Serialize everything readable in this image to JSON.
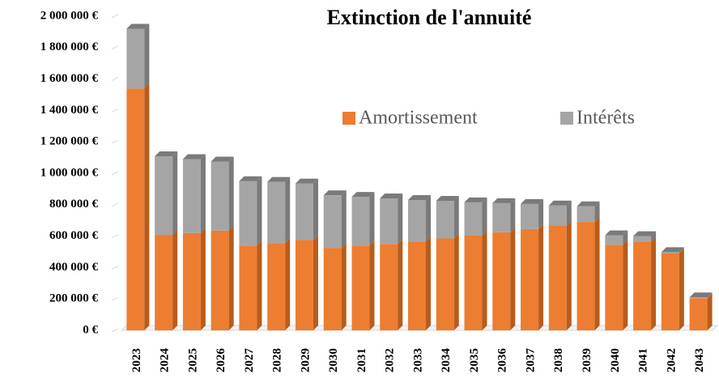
{
  "chart_data": {
    "type": "bar",
    "stacked": true,
    "title": "Extinction de l'annuité",
    "categories": [
      "2023",
      "2024",
      "2025",
      "2026",
      "2027",
      "2028",
      "2029",
      "2030",
      "2031",
      "2032",
      "2033",
      "2034",
      "2035",
      "2036",
      "2037",
      "2038",
      "2039",
      "2040",
      "2041",
      "2042",
      "2043"
    ],
    "series": [
      {
        "name": "Amortissement",
        "color": "#ED7D31",
        "side": "#B85C1C",
        "values": [
          1540000,
          608000,
          620000,
          635000,
          540000,
          555000,
          575000,
          525000,
          540000,
          550000,
          565000,
          585000,
          605000,
          625000,
          645000,
          665000,
          690000,
          545000,
          565000,
          490000,
          205000
        ]
      },
      {
        "name": "Intérêts",
        "color": "#A5A5A5",
        "side": "#7A7A7A",
        "values": [
          380000,
          500000,
          470000,
          440000,
          410000,
          390000,
          360000,
          335000,
          310000,
          290000,
          265000,
          240000,
          210000,
          185000,
          160000,
          130000,
          100000,
          60000,
          35000,
          8000,
          5000
        ]
      }
    ],
    "ylim": [
      0,
      2000000
    ],
    "yticks": [
      {
        "value": 0,
        "label": "0 €"
      },
      {
        "value": 200000,
        "label": "200 000 €"
      },
      {
        "value": 400000,
        "label": "400 000 €"
      },
      {
        "value": 600000,
        "label": "600 000 €"
      },
      {
        "value": 800000,
        "label": "800 000 €"
      },
      {
        "value": 1000000,
        "label": "1 000 000 €"
      },
      {
        "value": 1200000,
        "label": "1 200 000 €"
      },
      {
        "value": 1400000,
        "label": "1 400 000 €"
      },
      {
        "value": 1600000,
        "label": "1 600 000 €"
      },
      {
        "value": 1800000,
        "label": "1 800 000 €"
      },
      {
        "value": 2000000,
        "label": "2 000 000 €"
      }
    ],
    "grid": false,
    "legend": "upper center"
  }
}
